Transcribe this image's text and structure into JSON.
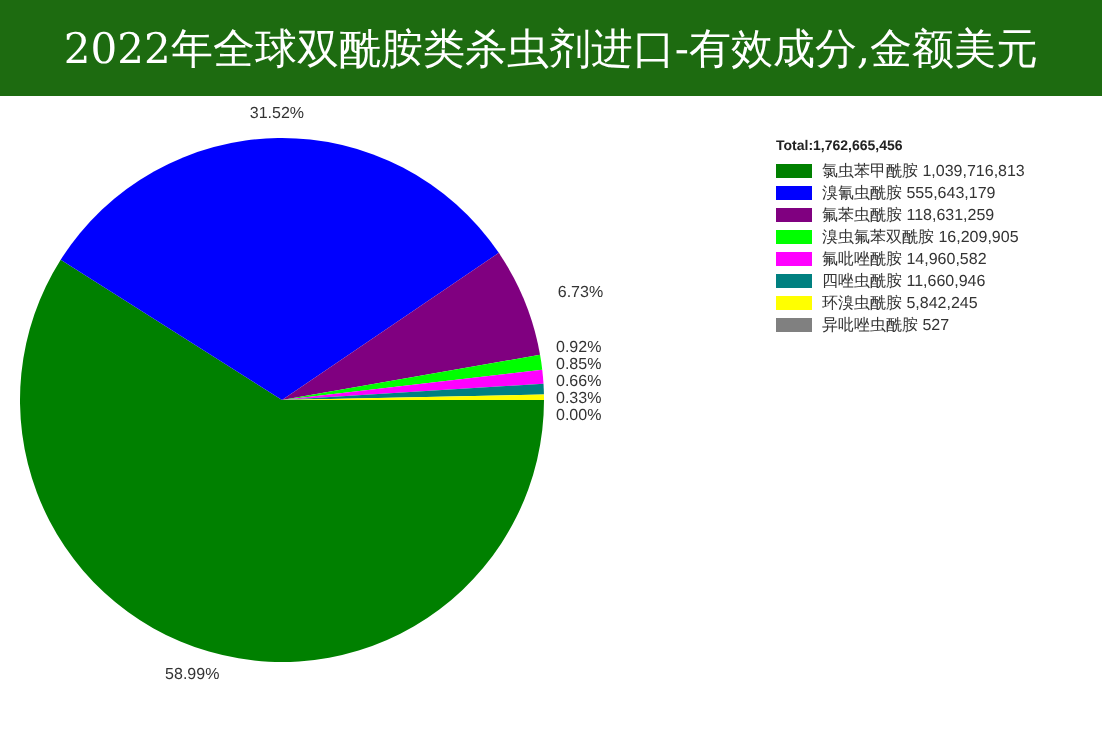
{
  "chart_data": {
    "type": "pie",
    "title": "2022年全球双酰胺类杀虫剂进口-有效成分,金额美元",
    "categories": [
      "氯虫苯甲酰胺  1,039,716,813",
      "溴氰虫酰胺  555,643,179",
      "氟苯虫酰胺  118,631,259",
      "溴虫氟苯双酰胺  16,209,905",
      "氟吡唑酰胺  14,960,582",
      "四唑虫酰胺  11,660,946",
      "环溴虫酰胺  5,842,245",
      "异吡唑虫酰胺  527"
    ],
    "values": [
      58.99,
      31.52,
      6.73,
      0.92,
      0.85,
      0.66,
      0.33,
      0
    ],
    "colors": [
      "#008000",
      "#0000ff",
      "#800080",
      "#00ff00",
      "#ff00ff",
      "#008080",
      "#ffff00",
      "#808080"
    ],
    "value_labels": [
      "58.99%",
      "31.52%",
      "6.73%",
      "0.92%",
      "0.85%",
      "0.66%",
      "0.33%",
      "0.00%"
    ],
    "annotations": [
      "Total:1,762,665,456"
    ],
    "legend": "right"
  }
}
